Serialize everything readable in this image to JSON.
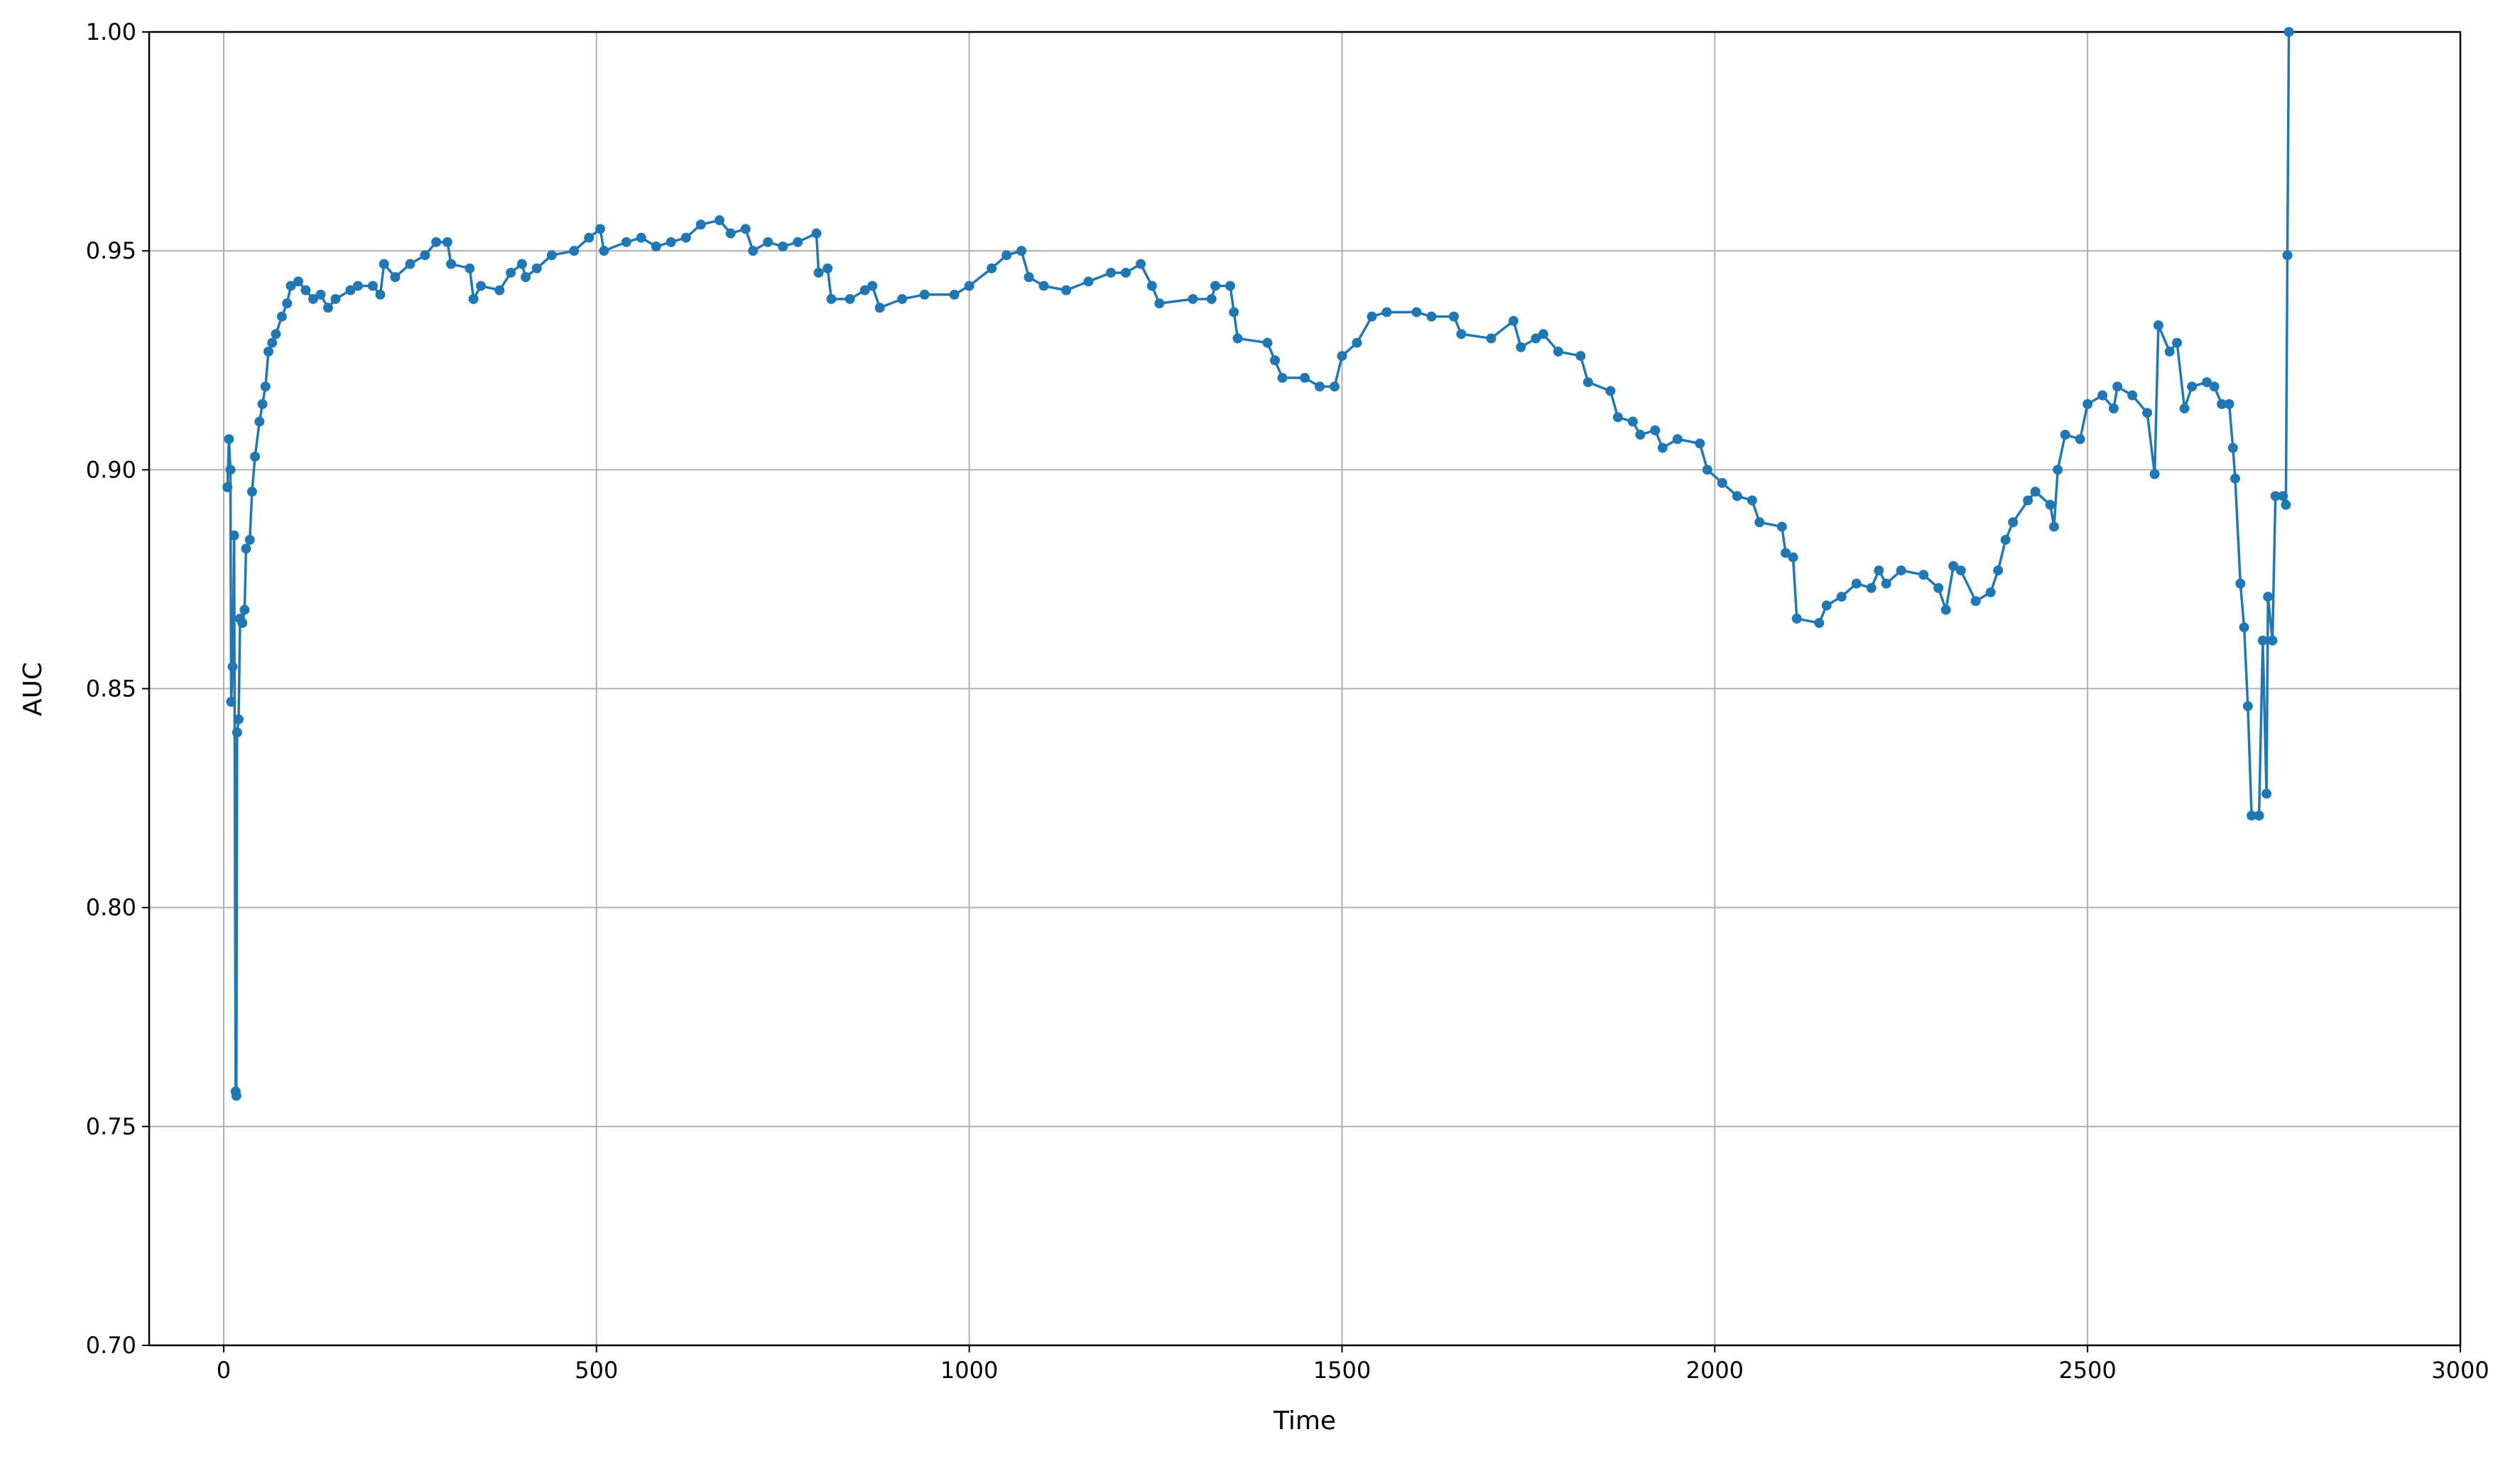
{
  "chart_data": {
    "type": "line",
    "x_label": "Time",
    "y_label": "AUC",
    "x": [
      5,
      7,
      9,
      10,
      12,
      14,
      16,
      17,
      18,
      20,
      22,
      25,
      28,
      30,
      35,
      38,
      42,
      48,
      52,
      56,
      60,
      65,
      70,
      78,
      85,
      90,
      100,
      110,
      120,
      130,
      140,
      150,
      170,
      180,
      200,
      210,
      215,
      230,
      250,
      270,
      285,
      300,
      305,
      330,
      335,
      345,
      370,
      385,
      400,
      405,
      420,
      440,
      470,
      490,
      505,
      510,
      540,
      560,
      580,
      600,
      620,
      640,
      665,
      680,
      700,
      710,
      730,
      750,
      770,
      795,
      798,
      810,
      815,
      840,
      860,
      870,
      880,
      910,
      940,
      980,
      1000,
      1030,
      1050,
      1070,
      1080,
      1100,
      1130,
      1160,
      1190,
      1210,
      1230,
      1245,
      1255,
      1300,
      1325,
      1330,
      1350,
      1355,
      1360,
      1400,
      1410,
      1420,
      1450,
      1470,
      1490,
      1500,
      1520,
      1540,
      1560,
      1600,
      1620,
      1650,
      1660,
      1700,
      1730,
      1740,
      1760,
      1770,
      1790,
      1820,
      1830,
      1860,
      1870,
      1890,
      1900,
      1920,
      1930,
      1950,
      1980,
      1990,
      2010,
      2030,
      2050,
      2060,
      2090,
      2095,
      2105,
      2110,
      2140,
      2150,
      2170,
      2190,
      2210,
      2220,
      2230,
      2250,
      2280,
      2300,
      2310,
      2320,
      2330,
      2350,
      2370,
      2380,
      2390,
      2400,
      2420,
      2430,
      2450,
      2455,
      2460,
      2470,
      2490,
      2500,
      2520,
      2535,
      2540,
      2560,
      2580,
      2590,
      2595,
      2610,
      2620,
      2630,
      2640,
      2660,
      2670,
      2680,
      2690,
      2695,
      2698,
      2705,
      2710,
      2715,
      2720,
      2730,
      2735,
      2740,
      2742,
      2748,
      2752,
      2762,
      2766,
      2768,
      2770
    ],
    "series": [
      {
        "color": "#1f77b4",
        "values": [
          0.896,
          0.907,
          0.9,
          0.847,
          0.855,
          0.885,
          0.758,
          0.757,
          0.84,
          0.843,
          0.866,
          0.865,
          0.868,
          0.882,
          0.884,
          0.895,
          0.903,
          0.911,
          0.915,
          0.919,
          0.927,
          0.929,
          0.931,
          0.935,
          0.938,
          0.942,
          0.943,
          0.941,
          0.939,
          0.94,
          0.937,
          0.939,
          0.941,
          0.942,
          0.942,
          0.94,
          0.947,
          0.944,
          0.947,
          0.949,
          0.952,
          0.952,
          0.947,
          0.946,
          0.939,
          0.942,
          0.941,
          0.945,
          0.947,
          0.944,
          0.946,
          0.949,
          0.95,
          0.953,
          0.955,
          0.95,
          0.952,
          0.953,
          0.951,
          0.952,
          0.953,
          0.956,
          0.957,
          0.954,
          0.955,
          0.95,
          0.952,
          0.951,
          0.952,
          0.954,
          0.945,
          0.946,
          0.939,
          0.939,
          0.941,
          0.942,
          0.937,
          0.939,
          0.94,
          0.94,
          0.942,
          0.946,
          0.949,
          0.95,
          0.944,
          0.942,
          0.941,
          0.943,
          0.945,
          0.945,
          0.947,
          0.942,
          0.938,
          0.939,
          0.939,
          0.942,
          0.942,
          0.936,
          0.93,
          0.929,
          0.925,
          0.921,
          0.921,
          0.919,
          0.919,
          0.926,
          0.929,
          0.935,
          0.936,
          0.936,
          0.935,
          0.935,
          0.931,
          0.93,
          0.934,
          0.928,
          0.93,
          0.931,
          0.927,
          0.926,
          0.92,
          0.918,
          0.912,
          0.911,
          0.908,
          0.909,
          0.905,
          0.907,
          0.906,
          0.9,
          0.897,
          0.894,
          0.893,
          0.888,
          0.887,
          0.881,
          0.88,
          0.866,
          0.865,
          0.869,
          0.871,
          0.874,
          0.873,
          0.877,
          0.874,
          0.877,
          0.876,
          0.873,
          0.868,
          0.878,
          0.877,
          0.87,
          0.872,
          0.877,
          0.884,
          0.888,
          0.893,
          0.895,
          0.892,
          0.887,
          0.9,
          0.908,
          0.907,
          0.915,
          0.917,
          0.914,
          0.919,
          0.917,
          0.913,
          0.899,
          0.933,
          0.927,
          0.929,
          0.914,
          0.919,
          0.92,
          0.919,
          0.915,
          0.915,
          0.905,
          0.898,
          0.874,
          0.864,
          0.846,
          0.821,
          0.821,
          0.861,
          0.826,
          0.871,
          0.861,
          0.894,
          0.894,
          0.892,
          0.949,
          1.0
        ]
      }
    ],
    "xlim": [
      -100,
      3000
    ],
    "xticks": [
      0,
      500,
      1000,
      1500,
      2000,
      2500,
      3000
    ],
    "ylim": [
      0.7,
      1.0
    ],
    "yticks": [
      {
        "value": 0.7,
        "label": "0.70"
      },
      {
        "value": 0.75,
        "label": "0.75"
      },
      {
        "value": 0.8,
        "label": "0.80"
      },
      {
        "value": 0.85,
        "label": "0.85"
      },
      {
        "value": 0.9,
        "label": "0.90"
      },
      {
        "value": 0.95,
        "label": "0.95"
      },
      {
        "value": 1.0,
        "label": "1.00"
      }
    ],
    "grid": true
  }
}
